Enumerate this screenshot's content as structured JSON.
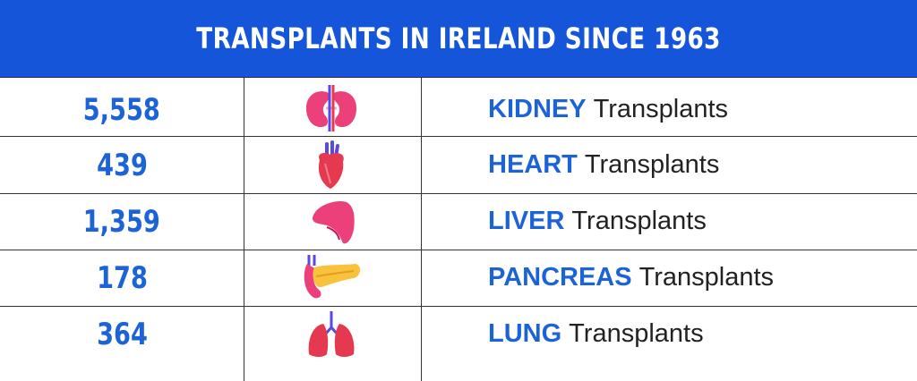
{
  "title": "TRANSPLANTS IN IRELAND SINCE 1963",
  "suffix": "Transplants",
  "rows": [
    {
      "count": "5,558",
      "organ": "KIDNEY",
      "icon": "kidney-icon"
    },
    {
      "count": "439",
      "organ": "HEART",
      "icon": "heart-icon"
    },
    {
      "count": "1,359",
      "organ": "LIVER",
      "icon": "liver-icon"
    },
    {
      "count": "178",
      "organ": "PANCREAS",
      "icon": "pancreas-icon"
    },
    {
      "count": "364",
      "organ": "LUNG",
      "icon": "lungs-icon"
    }
  ],
  "colors": {
    "banner": "#1455d9",
    "accent": "#1c63d8",
    "organ_pink": "#ec407a",
    "organ_yellow": "#f9c23c",
    "vessel_blue": "#5a48e0"
  }
}
